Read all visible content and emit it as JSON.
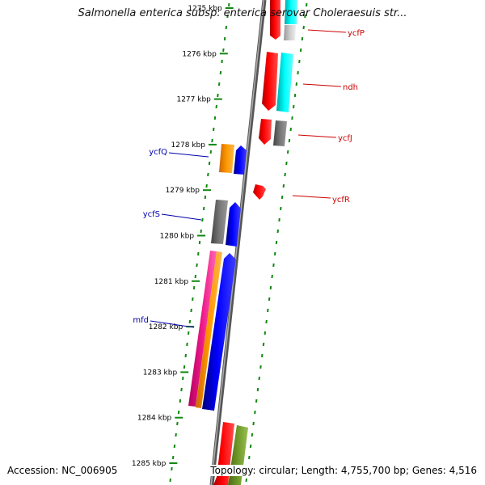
{
  "title": "Salmonella enterica subsp. enterica serovar Choleraesuis str...",
  "accession_text": "Accession: NC_006905",
  "genome_info_text": "Topology: circular; Length: 4,755,700 bp; Genes: 4,516",
  "ticks": [
    {
      "label": "1275 kbp",
      "faded": true
    },
    {
      "label": "1276 kbp"
    },
    {
      "label": "1277 kbp"
    },
    {
      "label": "1278 kbp"
    },
    {
      "label": "1279 kbp"
    },
    {
      "label": "1280 kbp"
    },
    {
      "label": "1281 kbp"
    },
    {
      "label": "1282 kbp"
    },
    {
      "label": "1283 kbp"
    },
    {
      "label": "1284 kbp"
    },
    {
      "label": "1285 kbp"
    }
  ],
  "gene_labels": [
    {
      "name": "ycfP",
      "strand": "forward",
      "color": "#cc0000"
    },
    {
      "name": "ndh",
      "strand": "forward",
      "color": "#cc0000"
    },
    {
      "name": "ycfJ",
      "strand": "forward",
      "color": "#cc0000"
    },
    {
      "name": "ycfR",
      "strand": "forward",
      "color": "#cc0000"
    },
    {
      "name": "ycfQ",
      "strand": "reverse",
      "color": "#0000aa"
    },
    {
      "name": "ycfS",
      "strand": "reverse",
      "color": "#0000aa"
    },
    {
      "name": "mfd",
      "strand": "reverse",
      "color": "#0000aa"
    }
  ],
  "colors": {
    "forward_gene": "#ff0000",
    "reverse_gene": "#0000ff",
    "cyan_track": "#00e5e5",
    "gray_track": "#666666",
    "orange_track": "#ff8c00",
    "magenta_track": "#e6197f",
    "olive_track": "#6b8e23",
    "backbone": "#777777",
    "ruler_dash": "#118811"
  }
}
